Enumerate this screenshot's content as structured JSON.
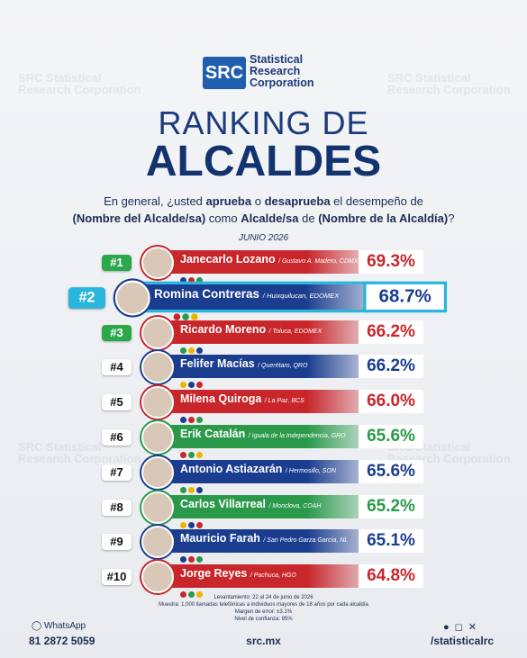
{
  "logo": {
    "mark": "SRC",
    "name": [
      "Statistical",
      "Research",
      "Corporation"
    ]
  },
  "heading": {
    "line1": "RANKING DE",
    "line2": "ALCALDES"
  },
  "question": [
    [
      {
        "text": "En general, ¿usted ",
        "bold": false
      },
      {
        "text": "aprueba",
        "bold": true
      },
      {
        "text": " o ",
        "bold": false
      },
      {
        "text": "desaprueba",
        "bold": true
      },
      {
        "text": " el desempeño de",
        "bold": false
      }
    ],
    [
      {
        "text": "(Nombre del Alcalde/sa)",
        "bold": true
      },
      {
        "text": " como ",
        "bold": false
      },
      {
        "text": "Alcalde/sa",
        "bold": true
      },
      {
        "text": " de ",
        "bold": false
      },
      {
        "text": "(Nombre de la Alcaldía)",
        "bold": true
      },
      {
        "text": "?",
        "bold": false
      }
    ]
  ],
  "date": "JUNIO 2026",
  "ranking": [
    {
      "rank": "#1",
      "name": "Janecarlo Lozano",
      "place": "/ Gustavo A. Madero, CDMX",
      "value": "69.3%",
      "color": "#c8262b"
    },
    {
      "rank": "#2",
      "name": "Romina Contreras",
      "place": "/ Huixquilucan, EDOMEX",
      "value": "68.7%",
      "color": "#1a3d8f"
    },
    {
      "rank": "#3",
      "name": "Ricardo Moreno",
      "place": "/ Toluca, EDOMEX",
      "value": "66.2%",
      "color": "#c8262b"
    },
    {
      "rank": "#4",
      "name": "Felifer Macías",
      "place": "/ Querétaro, QRO",
      "value": "66.2%",
      "color": "#1a3d8f"
    },
    {
      "rank": "#5",
      "name": "Milena Quiroga",
      "place": "/ La Paz, BCS",
      "value": "66.0%",
      "color": "#c8262b"
    },
    {
      "rank": "#6",
      "name": "Erik Catalán",
      "place": "/ Iguala de la Independencia, GRO",
      "value": "65.6%",
      "color": "#2a9a4a"
    },
    {
      "rank": "#7",
      "name": "Antonio Astiazarán",
      "place": "/ Hermosillo, SON",
      "value": "65.6%",
      "color": "#1a3d8f"
    },
    {
      "rank": "#8",
      "name": "Carlos Villarreal",
      "place": "/ Monclova, COAH",
      "value": "65.2%",
      "color": "#2a9a4a"
    },
    {
      "rank": "#9",
      "name": "Mauricio Farah",
      "place": "/ San Pedro Garza García, NL",
      "value": "65.1%",
      "color": "#1a3d8f"
    },
    {
      "rank": "#10",
      "name": "Jorge Reyes",
      "place": "/ Pachuca, HGO",
      "value": "64.8%",
      "color": "#c8262b"
    }
  ],
  "methodology": [
    "Levantamiento: 22 al 24 de junio de 2026",
    "Muestra: 1,000 llamadas telefónicas a individuos mayores de 18 años por cada alcaldía",
    "Margen de error: ±3.1%",
    "Nivel de confianza: 95%"
  ],
  "footer": {
    "whatsapp_label": "WhatsApp",
    "whatsapp_number": "81 2872 5059",
    "website": "src.mx",
    "social": "/statisticalrc"
  }
}
